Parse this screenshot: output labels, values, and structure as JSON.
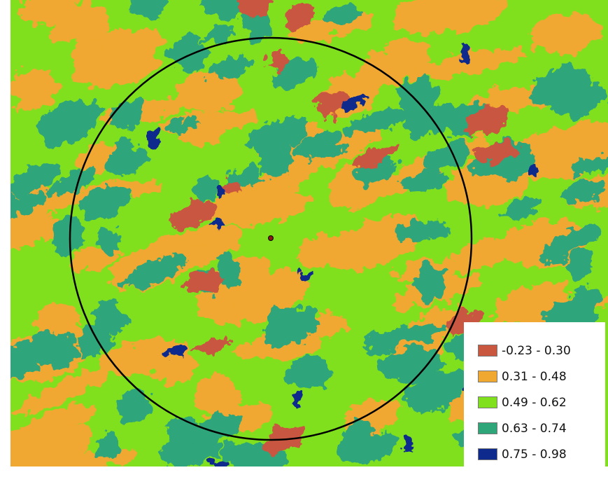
{
  "legend": {
    "items": [
      {
        "label": "-0.23 - 0.30",
        "color": "#c9573f"
      },
      {
        "label": "0.31 - 0.48",
        "color": "#f0a830"
      },
      {
        "label": "0.49 - 0.62",
        "color": "#80e01e"
      },
      {
        "label": "0.63 - 0.74",
        "color": "#2fa57a"
      },
      {
        "label": "0.75 - 0.98",
        "color": "#0e2a8c"
      }
    ]
  }
}
